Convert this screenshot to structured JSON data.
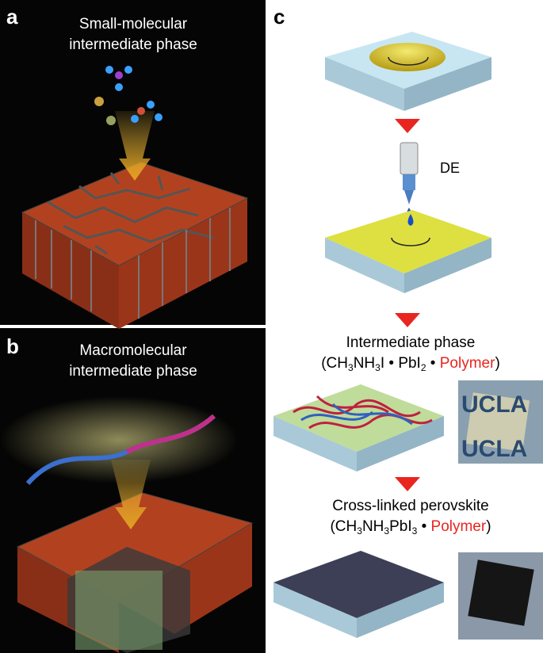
{
  "panel_a": {
    "label": "a",
    "title_lines": [
      "Small-molecular",
      "intermediate phase"
    ]
  },
  "panel_b": {
    "label": "b",
    "title_lines": [
      "Macromolecular",
      "intermediate phase"
    ]
  },
  "panel_c": {
    "label": "c",
    "dropper_label": "DE",
    "intermediate": {
      "title": "Intermediate phase",
      "formula": [
        "(CH",
        "3",
        "NH",
        "3",
        "I • PbI",
        "2",
        " • ",
        "Polymer",
        ")"
      ]
    },
    "perovskite": {
      "title": "Cross-linked perovskite",
      "formula": [
        "(CH",
        "3",
        "NH",
        "3",
        "PbI",
        "3",
        " • ",
        "Polymer",
        ")"
      ]
    },
    "photo_text": "UCLA"
  }
}
